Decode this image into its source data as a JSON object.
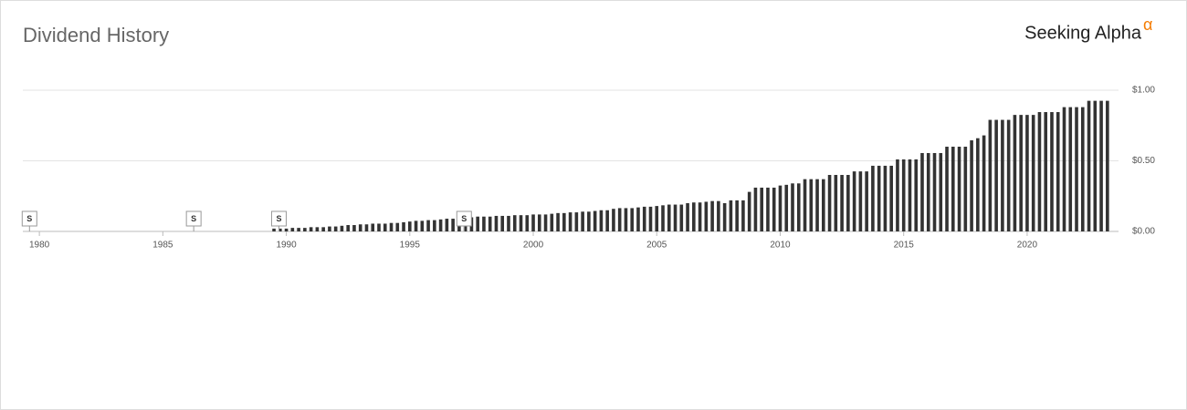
{
  "chart_data": {
    "type": "bar",
    "title": "Dividend History",
    "logo": "Seeking Alpha",
    "logo_mark": "α",
    "x": [
      1989.5,
      1989.75,
      1990,
      1990.25,
      1990.5,
      1990.75,
      1991,
      1991.25,
      1991.5,
      1991.75,
      1992,
      1992.25,
      1992.5,
      1992.75,
      1993,
      1993.25,
      1993.5,
      1993.75,
      1994,
      1994.25,
      1994.5,
      1994.75,
      1995,
      1995.25,
      1995.5,
      1995.75,
      1996,
      1996.25,
      1996.5,
      1996.75,
      1997,
      1997.25,
      1997.5,
      1997.75,
      1998,
      1998.25,
      1998.5,
      1998.75,
      1999,
      1999.25,
      1999.5,
      1999.75,
      2000,
      2000.25,
      2000.5,
      2000.75,
      2001,
      2001.25,
      2001.5,
      2001.75,
      2002,
      2002.25,
      2002.5,
      2002.75,
      2003,
      2003.25,
      2003.5,
      2003.75,
      2004,
      2004.25,
      2004.5,
      2004.75,
      2005,
      2005.25,
      2005.5,
      2005.75,
      2006,
      2006.25,
      2006.5,
      2006.75,
      2007,
      2007.25,
      2007.5,
      2007.75,
      2008,
      2008.25,
      2008.5,
      2008.75,
      2009,
      2009.25,
      2009.5,
      2009.75,
      2010,
      2010.25,
      2010.5,
      2010.75,
      2011,
      2011.25,
      2011.5,
      2011.75,
      2012,
      2012.25,
      2012.5,
      2012.75,
      2013,
      2013.25,
      2013.5,
      2013.75,
      2014,
      2014.25,
      2014.5,
      2014.75,
      2015,
      2015.25,
      2015.5,
      2015.75,
      2016,
      2016.25,
      2016.5,
      2016.75,
      2017,
      2017.25,
      2017.5,
      2017.75,
      2018,
      2018.25,
      2018.5,
      2018.75,
      2019,
      2019.25,
      2019.5,
      2019.75,
      2020,
      2020.25,
      2020.5,
      2020.75,
      2021,
      2021.25,
      2021.5,
      2021.75,
      2022,
      2022.25,
      2022.5,
      2022.75,
      2023,
      2023.25
    ],
    "values": [
      0.02,
      0.02,
      0.02,
      0.025,
      0.025,
      0.025,
      0.03,
      0.03,
      0.03,
      0.035,
      0.035,
      0.04,
      0.045,
      0.045,
      0.05,
      0.05,
      0.055,
      0.055,
      0.055,
      0.06,
      0.06,
      0.065,
      0.07,
      0.075,
      0.075,
      0.08,
      0.08,
      0.085,
      0.09,
      0.09,
      0.095,
      0.1,
      0.1,
      0.105,
      0.105,
      0.105,
      0.11,
      0.11,
      0.11,
      0.115,
      0.115,
      0.115,
      0.12,
      0.12,
      0.12,
      0.125,
      0.13,
      0.13,
      0.135,
      0.135,
      0.14,
      0.14,
      0.145,
      0.15,
      0.15,
      0.16,
      0.165,
      0.165,
      0.165,
      0.17,
      0.175,
      0.175,
      0.18,
      0.185,
      0.19,
      0.19,
      0.19,
      0.2,
      0.205,
      0.205,
      0.21,
      0.215,
      0.215,
      0.2,
      0.22,
      0.22,
      0.22,
      0.28,
      0.31,
      0.31,
      0.31,
      0.31,
      0.325,
      0.33,
      0.34,
      0.34,
      0.37,
      0.37,
      0.37,
      0.37,
      0.4,
      0.4,
      0.4,
      0.4,
      0.425,
      0.425,
      0.425,
      0.465,
      0.465,
      0.465,
      0.465,
      0.51,
      0.51,
      0.51,
      0.51,
      0.555,
      0.555,
      0.555,
      0.555,
      0.6,
      0.6,
      0.6,
      0.6,
      0.645,
      0.66,
      0.68,
      0.79,
      0.79,
      0.79,
      0.79,
      0.825,
      0.825,
      0.825,
      0.825,
      0.845,
      0.845,
      0.845,
      0.845,
      0.88,
      0.88,
      0.88,
      0.88,
      0.925,
      0.925,
      0.925,
      0.925
    ],
    "color": "#333333",
    "xlim": [
      1979.33,
      2023.7
    ],
    "xticks": [
      1980,
      1985,
      1990,
      1995,
      2000,
      2005,
      2010,
      2015,
      2020
    ],
    "ylim": [
      0,
      1.0
    ],
    "yticks": [
      {
        "value": 0,
        "label": "$0.00"
      },
      {
        "value": 0.5,
        "label": "$0.50"
      },
      {
        "value": 1.0,
        "label": "$1.00"
      }
    ],
    "grid": true,
    "splits": [
      {
        "x": 1979.6,
        "label": "S"
      },
      {
        "x": 1986.25,
        "label": "S"
      },
      {
        "x": 1989.7,
        "label": "S"
      },
      {
        "x": 1997.2,
        "label": "S"
      }
    ]
  }
}
